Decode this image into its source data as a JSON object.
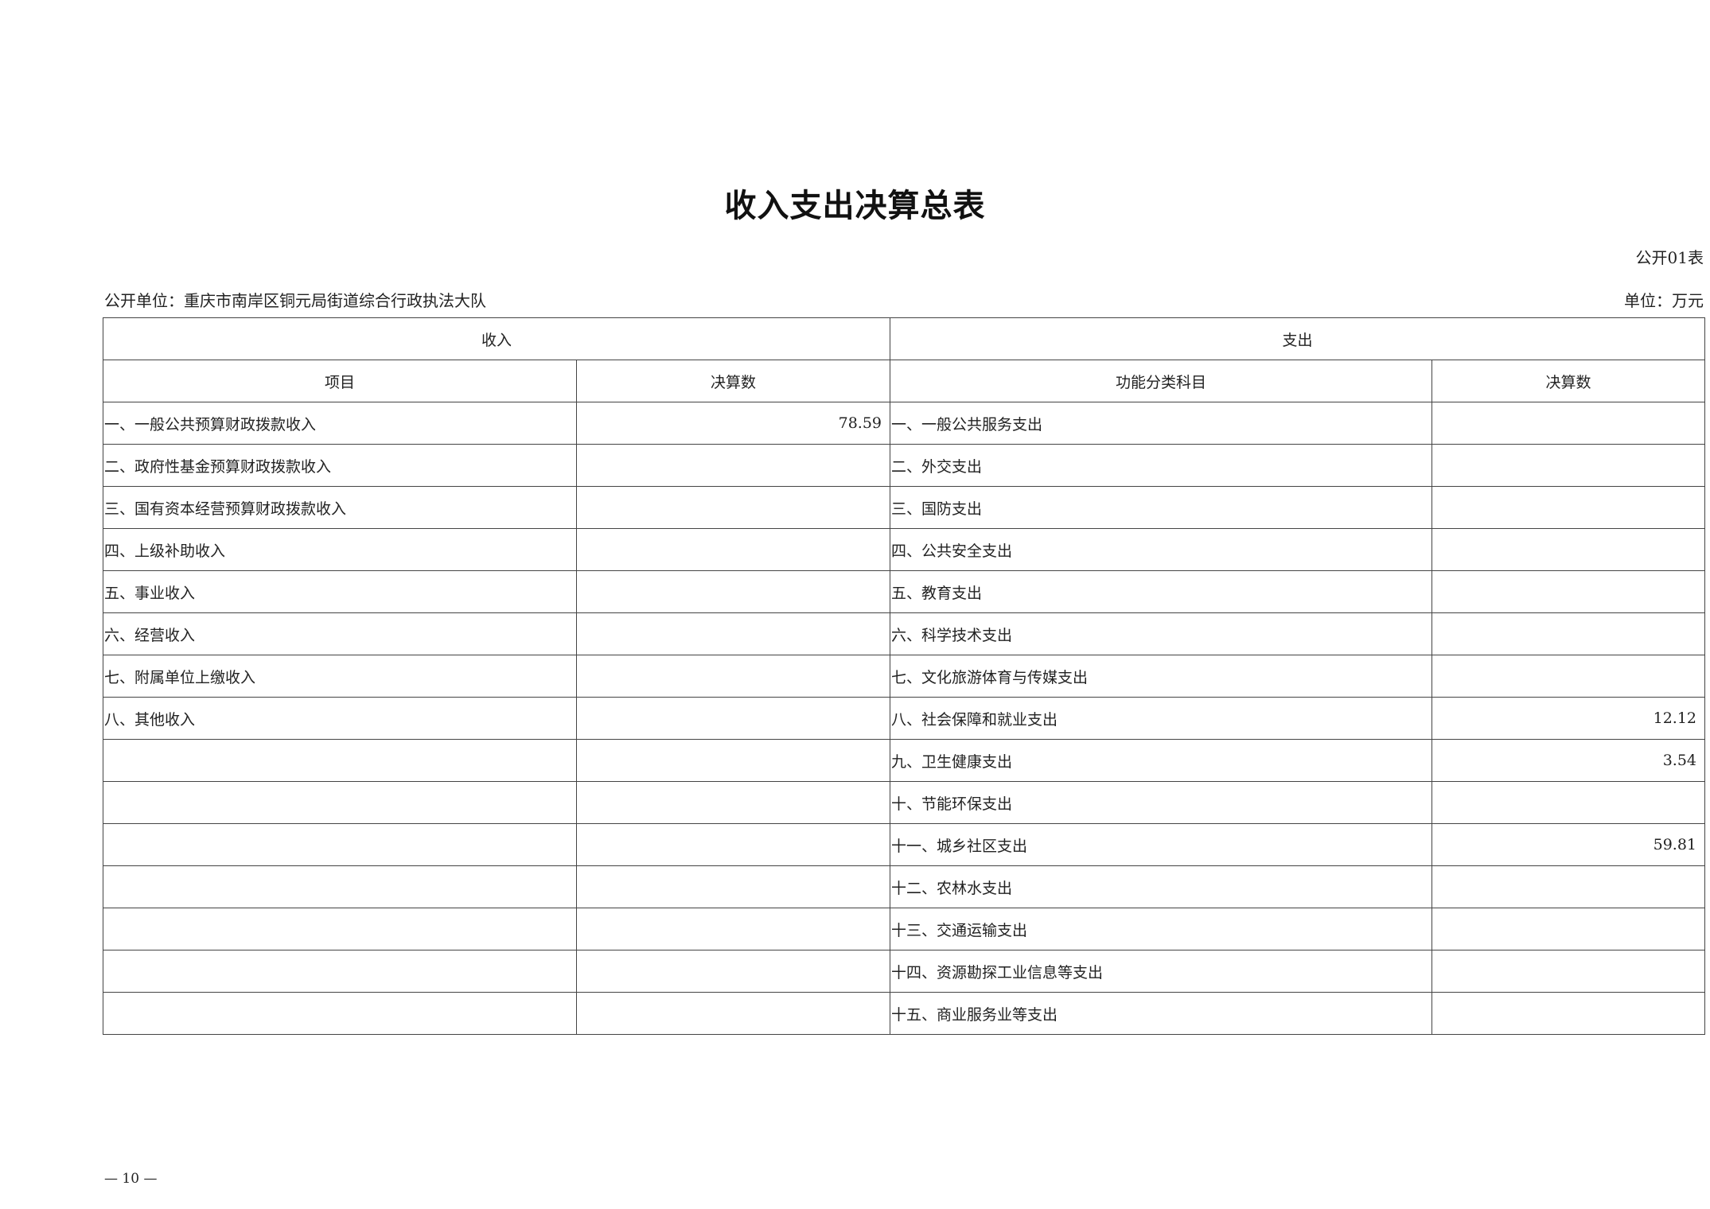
{
  "title": "收入支出决算总表",
  "form_no": "公开01表",
  "org_label": "公开单位：重庆市南岸区铜元局街道综合行政执法大队",
  "unit_label": "单位：万元",
  "table": {
    "income_header": "收入",
    "expense_header": "支出",
    "col_item": "项目",
    "col_income_amount": "决算数",
    "col_function": "功能分类科目",
    "col_expense_amount": "决算数",
    "rows": [
      {
        "income_item": "一、一般公共预算财政拨款收入",
        "income_amount": "78.59",
        "expense_item": "一、一般公共服务支出",
        "expense_amount": ""
      },
      {
        "income_item": "二、政府性基金预算财政拨款收入",
        "income_amount": "",
        "expense_item": "二、外交支出",
        "expense_amount": ""
      },
      {
        "income_item": "三、国有资本经营预算财政拨款收入",
        "income_amount": "",
        "expense_item": "三、国防支出",
        "expense_amount": ""
      },
      {
        "income_item": "四、上级补助收入",
        "income_amount": "",
        "expense_item": "四、公共安全支出",
        "expense_amount": ""
      },
      {
        "income_item": "五、事业收入",
        "income_amount": "",
        "expense_item": "五、教育支出",
        "expense_amount": ""
      },
      {
        "income_item": "六、经营收入",
        "income_amount": "",
        "expense_item": "六、科学技术支出",
        "expense_amount": ""
      },
      {
        "income_item": "七、附属单位上缴收入",
        "income_amount": "",
        "expense_item": "七、文化旅游体育与传媒支出",
        "expense_amount": ""
      },
      {
        "income_item": "八、其他收入",
        "income_amount": "",
        "expense_item": "八、社会保障和就业支出",
        "expense_amount": "12.12"
      },
      {
        "income_item": "",
        "income_amount": "",
        "expense_item": "九、卫生健康支出",
        "expense_amount": "3.54"
      },
      {
        "income_item": "",
        "income_amount": "",
        "expense_item": "十、节能环保支出",
        "expense_amount": ""
      },
      {
        "income_item": "",
        "income_amount": "",
        "expense_item": "十一、城乡社区支出",
        "expense_amount": "59.81"
      },
      {
        "income_item": "",
        "income_amount": "",
        "expense_item": "十二、农林水支出",
        "expense_amount": ""
      },
      {
        "income_item": "",
        "income_amount": "",
        "expense_item": "十三、交通运输支出",
        "expense_amount": ""
      },
      {
        "income_item": "",
        "income_amount": "",
        "expense_item": "十四、资源勘探工业信息等支出",
        "expense_amount": ""
      },
      {
        "income_item": "",
        "income_amount": "",
        "expense_item": "十五、商业服务业等支出",
        "expense_amount": ""
      }
    ]
  },
  "page_number": "— 10 —"
}
